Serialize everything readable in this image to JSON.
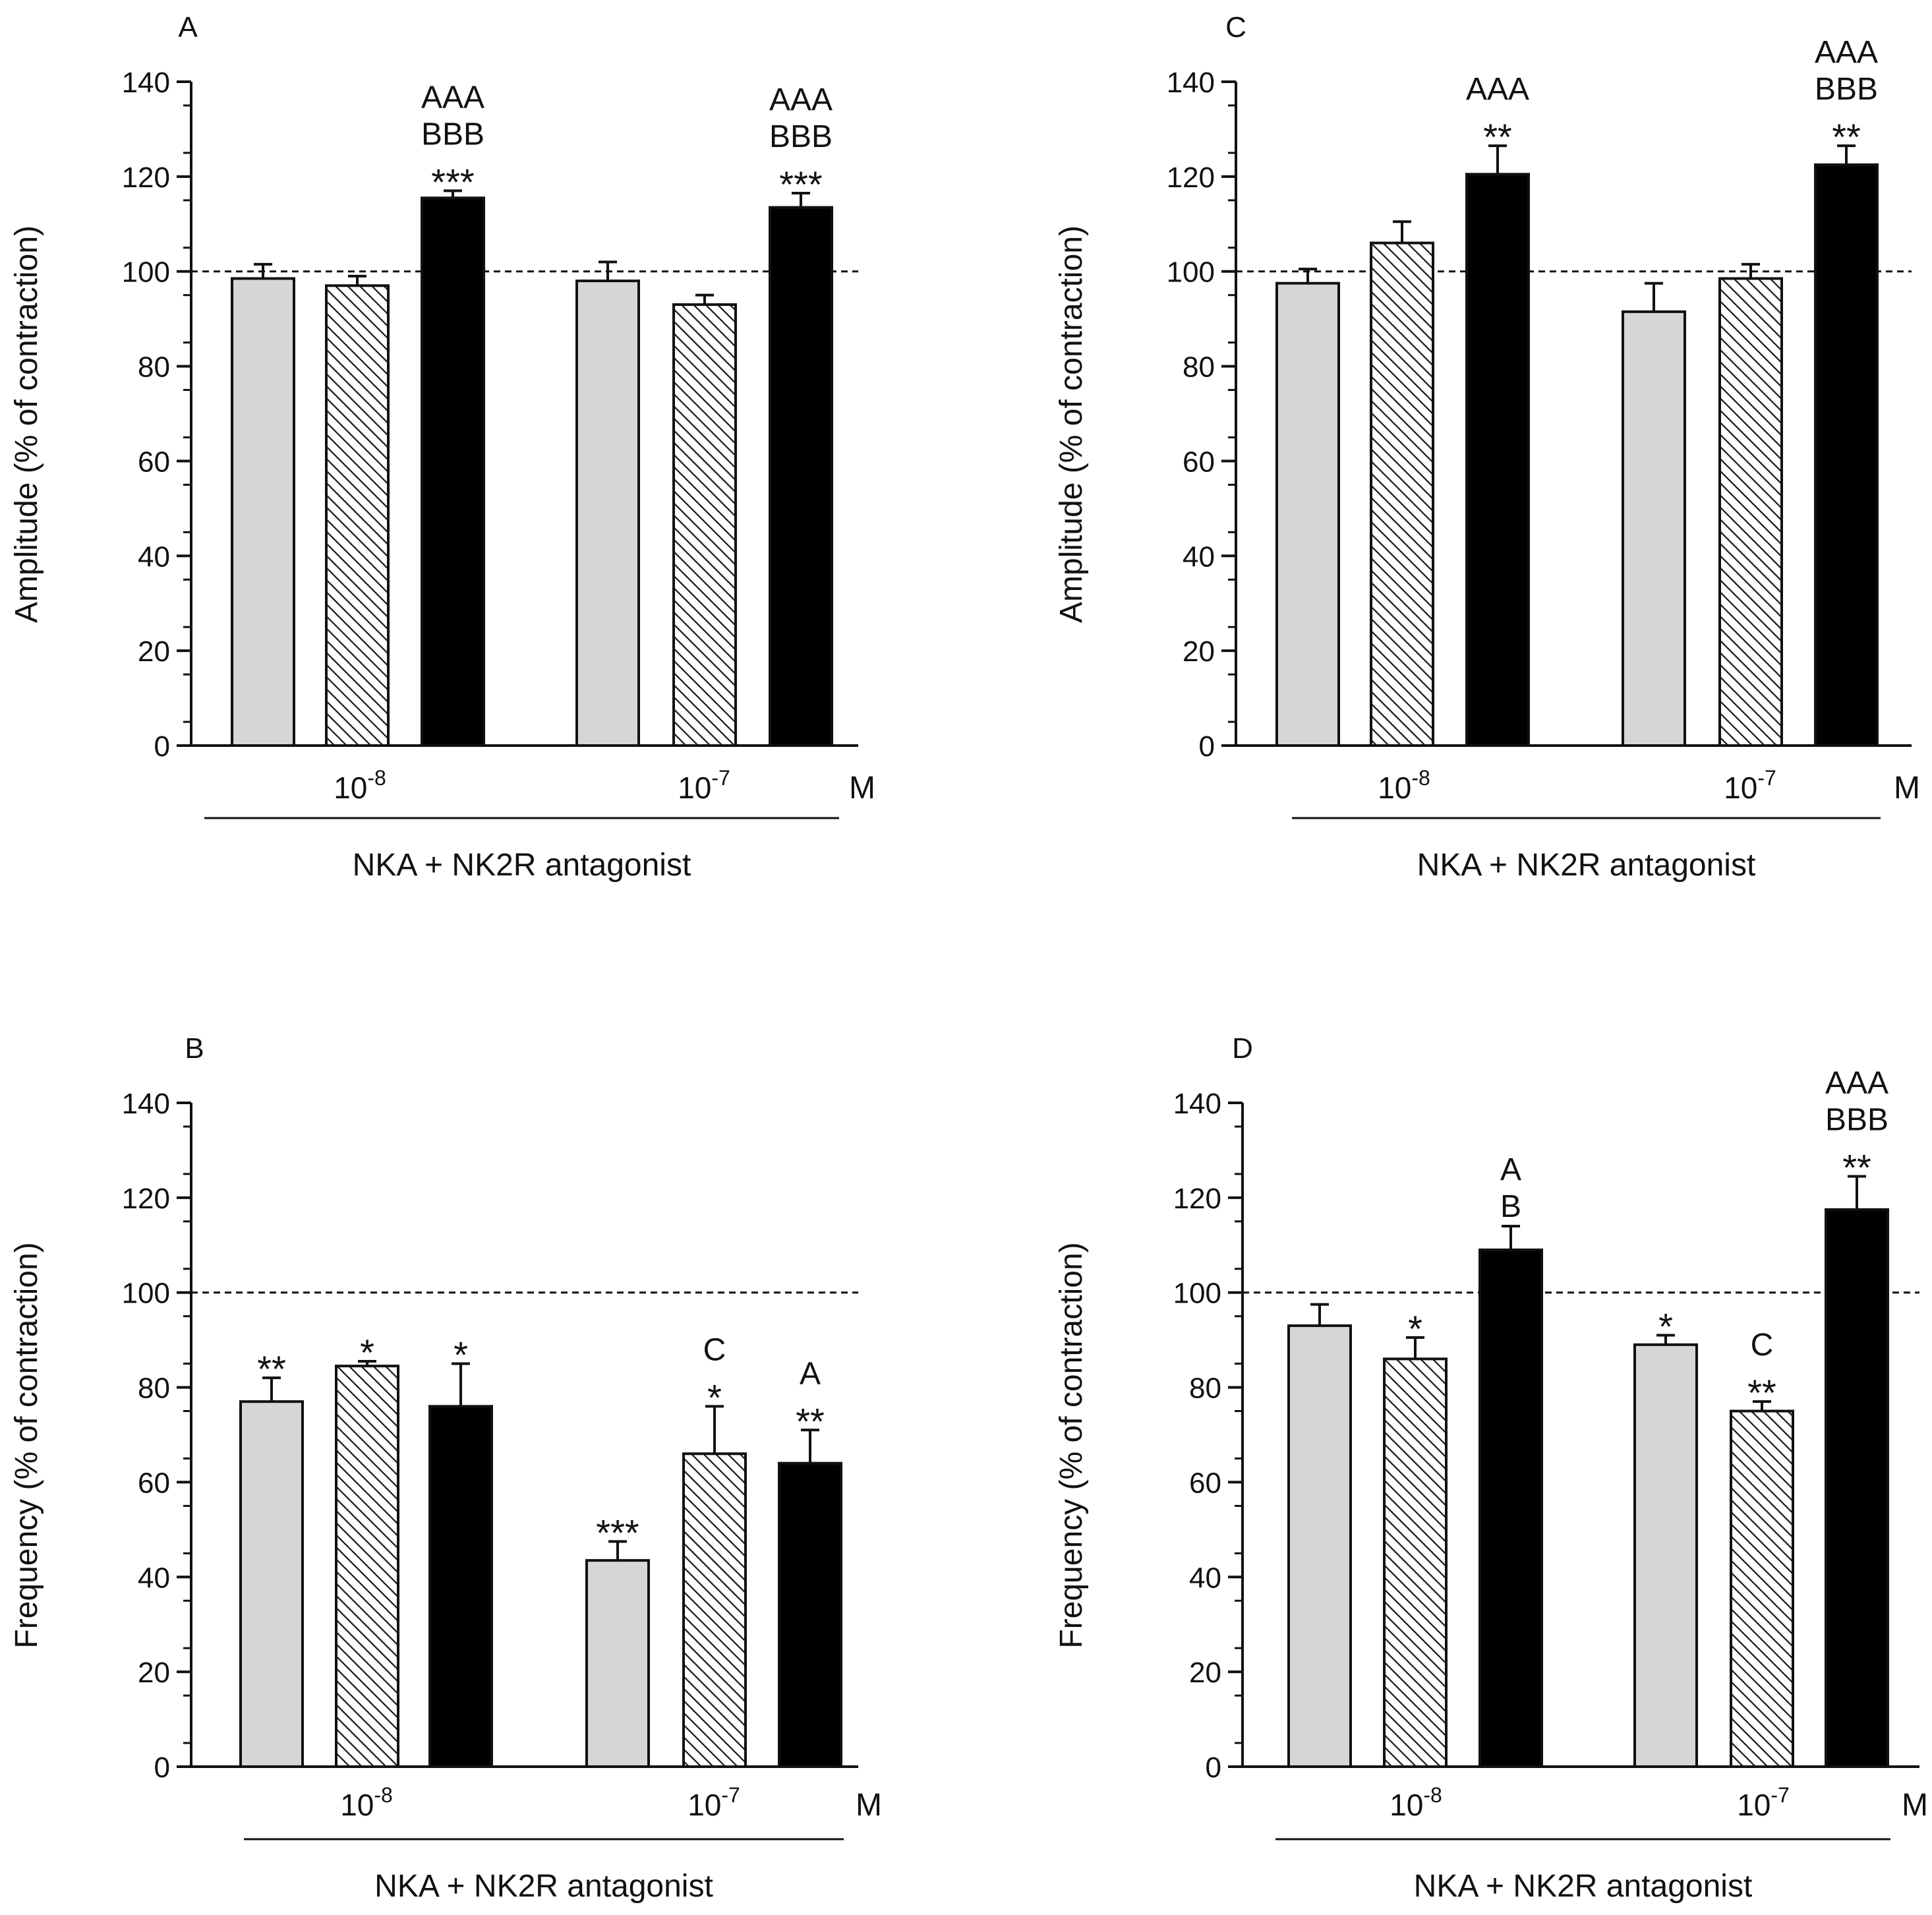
{
  "colors": {
    "gray": "#d6d6d6",
    "black": "#000000",
    "hatch_bg": "#ffffff",
    "hatch_line": "#1a1a1a",
    "axis": "#111111"
  },
  "chart_data": [
    {
      "id": "A",
      "type": "bar",
      "panel_label": "A",
      "ylabel": "Amplitude (% of contraction)",
      "ylim": [
        0,
        140
      ],
      "yticks": [
        0,
        20,
        40,
        60,
        80,
        100,
        120,
        140
      ],
      "reference_line": 100,
      "groups": [
        {
          "sup": "-8",
          "values": [
            98.5,
            97,
            115.5
          ],
          "errors": [
            3,
            2,
            1.5
          ],
          "annotations": [
            [],
            [],
            [
              "AAA",
              "BBB",
              "***"
            ]
          ]
        },
        {
          "sup": "-7",
          "values": [
            98,
            93,
            113.5
          ],
          "errors": [
            4,
            2,
            3
          ],
          "annotations": [
            [],
            [],
            [
              "AAA",
              "BBB",
              "***"
            ]
          ]
        }
      ],
      "series_styles": [
        "gray",
        "hatched",
        "black"
      ],
      "concentration_unit": "M",
      "xlabel": "NKA + NK2R antagonist"
    },
    {
      "id": "C",
      "type": "bar",
      "panel_label": "C",
      "ylabel": "Amplitude (% of contraction)",
      "ylim": [
        0,
        140
      ],
      "yticks": [
        0,
        20,
        40,
        60,
        80,
        100,
        120,
        140
      ],
      "reference_line": 100,
      "groups": [
        {
          "sup": "-8",
          "values": [
            97.5,
            106,
            120.5
          ],
          "errors": [
            3,
            4.5,
            6
          ],
          "annotations": [
            [],
            [],
            [
              "AAA",
              "**"
            ]
          ]
        },
        {
          "sup": "-7",
          "values": [
            91.5,
            98.5,
            122.5
          ],
          "errors": [
            6,
            3,
            4
          ],
          "annotations": [
            [],
            [],
            [
              "AAA",
              "BBB",
              "**"
            ]
          ]
        }
      ],
      "series_styles": [
        "gray",
        "hatched",
        "black"
      ],
      "concentration_unit": "M",
      "xlabel": "NKA + NK2R antagonist"
    },
    {
      "id": "B",
      "type": "bar",
      "panel_label": "B",
      "ylabel": "Frequency (% of contraction)",
      "ylim": [
        0,
        140
      ],
      "yticks": [
        0,
        20,
        40,
        60,
        80,
        100,
        120,
        140
      ],
      "reference_line": 100,
      "groups": [
        {
          "sup": "-8",
          "values": [
            77,
            84.5,
            76
          ],
          "errors": [
            5,
            1,
            9
          ],
          "annotations": [
            [
              "**"
            ],
            [
              "*"
            ],
            [
              "*"
            ]
          ]
        },
        {
          "sup": "-7",
          "values": [
            43.5,
            66,
            64
          ],
          "errors": [
            4,
            10,
            7
          ],
          "annotations": [
            [
              "***"
            ],
            [
              "C",
              "*"
            ],
            [
              "A",
              "**"
            ]
          ]
        }
      ],
      "series_styles": [
        "gray",
        "hatched",
        "black"
      ],
      "concentration_unit": "M",
      "xlabel": "NKA + NK2R antagonist"
    },
    {
      "id": "D",
      "type": "bar",
      "panel_label": "D",
      "ylabel": "Frequency (% of contraction)",
      "ylim": [
        0,
        140
      ],
      "yticks": [
        0,
        20,
        40,
        60,
        80,
        100,
        120,
        140
      ],
      "reference_line": 100,
      "groups": [
        {
          "sup": "-8",
          "values": [
            93,
            86,
            109
          ],
          "errors": [
            4.5,
            4.5,
            5
          ],
          "annotations": [
            [],
            [
              "*"
            ],
            [
              "A",
              "B"
            ]
          ]
        },
        {
          "sup": "-7",
          "values": [
            89,
            75,
            117.5
          ],
          "errors": [
            2,
            2,
            7
          ],
          "annotations": [
            [
              "*"
            ],
            [
              "C",
              "**"
            ],
            [
              "AAA",
              "BBB",
              "**"
            ]
          ]
        }
      ],
      "series_styles": [
        "gray",
        "hatched",
        "black"
      ],
      "concentration_unit": "M",
      "xlabel": "NKA + NK2R antagonist"
    }
  ]
}
